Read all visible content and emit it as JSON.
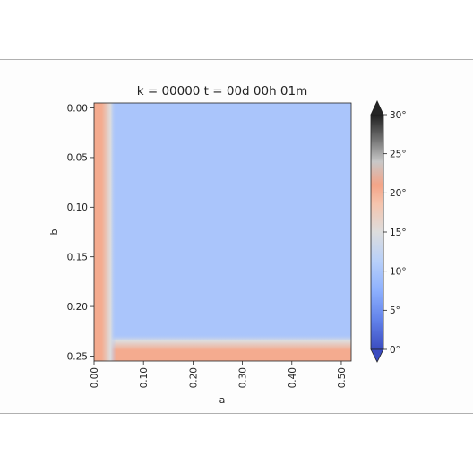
{
  "chart_data": {
    "type": "heatmap",
    "title": "k = 00000 t = 00d 00h 01m",
    "xlabel": "a",
    "ylabel": "b",
    "xlim": [
      0.0,
      0.52
    ],
    "ylim": [
      0.255,
      -0.005
    ],
    "x_ticks": [
      {
        "value": 0.0,
        "label": "0.00"
      },
      {
        "value": 0.1,
        "label": "0.10"
      },
      {
        "value": 0.2,
        "label": "0.20"
      },
      {
        "value": 0.3,
        "label": "0.30"
      },
      {
        "value": 0.4,
        "label": "0.40"
      },
      {
        "value": 0.5,
        "label": "0.50"
      }
    ],
    "y_ticks": [
      {
        "value": 0.0,
        "label": "0.00"
      },
      {
        "value": 0.05,
        "label": "0.05"
      },
      {
        "value": 0.1,
        "label": "0.10"
      },
      {
        "value": 0.15,
        "label": "0.15"
      },
      {
        "value": 0.2,
        "label": "0.20"
      },
      {
        "value": 0.25,
        "label": "0.25"
      }
    ],
    "field": {
      "description_values": "interior value approximately 10, left and bottom boundary value approximately 21",
      "interior_value": 10,
      "left_boundary": {
        "a_max": 0.03,
        "value": 21
      },
      "bottom_boundary": {
        "b_min": 0.235,
        "value": 21
      }
    },
    "colorbar": {
      "cmap": "coolwarm",
      "vmin": 0,
      "vmax": 30,
      "extend": "both",
      "ticks": [
        {
          "value": 0,
          "label": "0°"
        },
        {
          "value": 5,
          "label": "5°"
        },
        {
          "value": 10,
          "label": "10°"
        },
        {
          "value": 15,
          "label": "15°"
        },
        {
          "value": 20,
          "label": "20°"
        },
        {
          "value": 25,
          "label": "25°"
        },
        {
          "value": 30,
          "label": "30°"
        }
      ]
    }
  }
}
